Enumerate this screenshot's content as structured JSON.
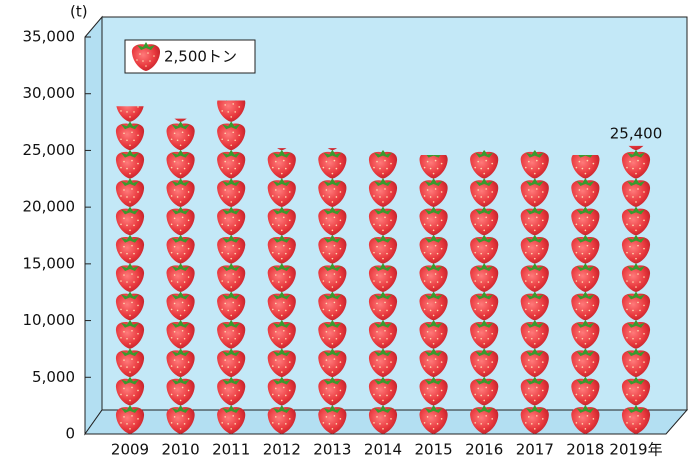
{
  "chart_data": {
    "type": "pictograph",
    "y_unit_label": "(t)",
    "unit": {
      "value": 2500,
      "label": "2,500トン"
    },
    "categories": [
      "2009",
      "2010",
      "2011",
      "2012",
      "2013",
      "2014",
      "2015",
      "2016",
      "2017",
      "2018",
      "2019年"
    ],
    "values": [
      28900,
      27800,
      29400,
      25200,
      25200,
      25000,
      24600,
      25000,
      25000,
      24600,
      25400
    ],
    "value_labels": [
      null,
      null,
      null,
      null,
      null,
      null,
      null,
      null,
      null,
      null,
      "25,400"
    ],
    "color": "#e8383d",
    "ylim": [
      0,
      35000
    ],
    "yticks": [
      0,
      {
        "value": 5000,
        "label": "5,000"
      },
      {
        "value": 10000,
        "label": "10,000"
      },
      {
        "value": 15000,
        "label": "15,000"
      },
      {
        "value": 20000,
        "label": "20,000"
      },
      {
        "value": 25000,
        "label": "25,000"
      },
      {
        "value": 30000,
        "label": "30,000"
      },
      {
        "value": 35000,
        "label": "35,000"
      }
    ],
    "grid": false
  }
}
